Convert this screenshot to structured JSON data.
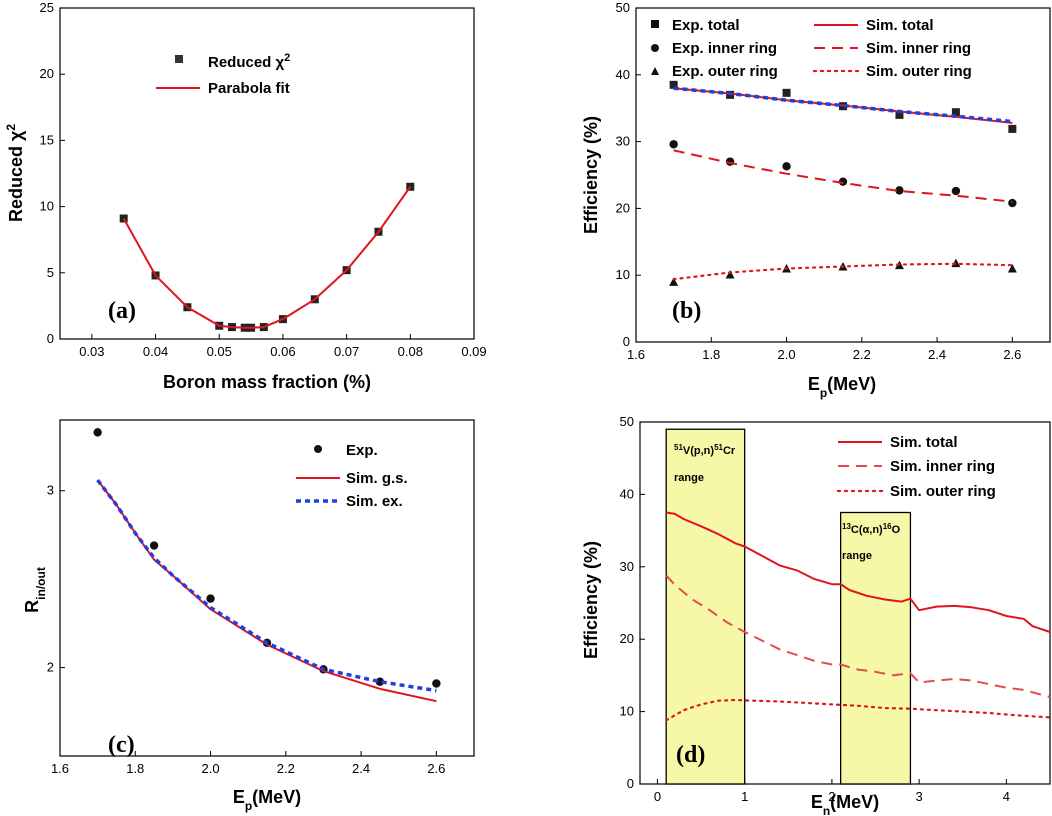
{
  "colors": {
    "sim_red": "#e0141e",
    "ex_blue": "#1f3fe0",
    "box_fill": "#f7f7a8"
  },
  "chart_data": [
    {
      "type": "scatter",
      "panel_label": "(a)",
      "xlabel": "Boron mass fraction (%)",
      "ylabel": "Reduced χ2",
      "xlim": [
        0.025,
        0.09
      ],
      "ylim": [
        0,
        25
      ],
      "xticks": [
        "0.03",
        "0.04",
        "0.05",
        "0.06",
        "0.07",
        "0.08",
        "0.09"
      ],
      "yticks": [
        "0",
        "5",
        "10",
        "15",
        "20",
        "25"
      ],
      "legend_loc": "top-center",
      "series": [
        {
          "name": "Reduced χ2",
          "kind": "marker",
          "marker": "square",
          "x": [
            0.035,
            0.04,
            0.045,
            0.05,
            0.052,
            0.054,
            0.055,
            0.057,
            0.06,
            0.065,
            0.07,
            0.075,
            0.08
          ],
          "y": [
            9.1,
            4.8,
            2.4,
            1.0,
            0.9,
            0.85,
            0.85,
            0.9,
            1.5,
            3.0,
            5.2,
            8.1,
            11.5
          ]
        },
        {
          "name": "Parabola fit",
          "kind": "line",
          "style": "solid",
          "x": [
            0.035,
            0.04,
            0.045,
            0.05,
            0.052,
            0.054,
            0.055,
            0.057,
            0.06,
            0.065,
            0.07,
            0.075,
            0.08
          ],
          "y": [
            9.1,
            4.8,
            2.4,
            1.0,
            0.9,
            0.85,
            0.85,
            0.9,
            1.5,
            3.0,
            5.2,
            8.1,
            11.5
          ]
        }
      ]
    },
    {
      "type": "scatter",
      "panel_label": "(b)",
      "xlabel": "Ep(MeV)",
      "ylabel": "Efficiency (%)",
      "xlim": [
        1.6,
        2.7
      ],
      "ylim": [
        0,
        50
      ],
      "xticks": [
        "1.6",
        "1.8",
        "2.0",
        "2.2",
        "2.4",
        "2.6"
      ],
      "yticks": [
        "0",
        "10",
        "20",
        "30",
        "40",
        "50"
      ],
      "legend_loc": "top",
      "series": [
        {
          "name": "Exp. total",
          "kind": "marker",
          "marker": "square",
          "x": [
            1.7,
            1.85,
            2.0,
            2.15,
            2.3,
            2.45,
            2.6
          ],
          "y": [
            38.5,
            37.0,
            37.3,
            35.3,
            34.0,
            34.4,
            31.9
          ]
        },
        {
          "name": "Exp. inner ring",
          "kind": "marker",
          "marker": "circle",
          "x": [
            1.7,
            1.85,
            2.0,
            2.15,
            2.3,
            2.45,
            2.6
          ],
          "y": [
            29.6,
            27.0,
            26.3,
            24.0,
            22.7,
            22.6,
            20.8
          ]
        },
        {
          "name": "Exp. outer ring",
          "kind": "marker",
          "marker": "triangle",
          "x": [
            1.7,
            1.85,
            2.0,
            2.15,
            2.3,
            2.45,
            2.6
          ],
          "y": [
            9.0,
            10.1,
            11.0,
            11.3,
            11.5,
            11.8,
            11.0
          ]
        },
        {
          "name": "Sim. total",
          "kind": "line",
          "style": "solid",
          "x": [
            1.7,
            1.85,
            2.0,
            2.15,
            2.3,
            2.45,
            2.6
          ],
          "y": [
            38.0,
            37.2,
            36.2,
            35.4,
            34.5,
            33.7,
            32.8
          ]
        },
        {
          "name": "Sim. inner ring",
          "kind": "line",
          "style": "dashed",
          "x": [
            1.7,
            1.85,
            2.0,
            2.15,
            2.3,
            2.45,
            2.6
          ],
          "y": [
            28.7,
            26.8,
            25.2,
            23.8,
            22.6,
            21.9,
            21.0
          ]
        },
        {
          "name": "Sim. outer ring",
          "kind": "line",
          "style": "dotted",
          "x": [
            1.7,
            1.85,
            2.0,
            2.15,
            2.3,
            2.45,
            2.6
          ],
          "y": [
            9.4,
            10.4,
            11.0,
            11.3,
            11.6,
            11.7,
            11.5
          ]
        },
        {
          "kind": "line",
          "style": "dotted-blue",
          "x": [
            1.7,
            1.85,
            2.0,
            2.15,
            2.3,
            2.45,
            2.6
          ],
          "y": [
            38.0,
            37.2,
            36.2,
            35.4,
            34.5,
            33.8,
            33.0
          ]
        }
      ]
    },
    {
      "type": "scatter",
      "panel_label": "(c)",
      "xlabel": "Ep(MeV)",
      "ylabel": "Rin/out",
      "xlim": [
        1.6,
        2.7
      ],
      "ylim": [
        1.5,
        3.4
      ],
      "xticks": [
        "1.6",
        "1.8",
        "2.0",
        "2.2",
        "2.4",
        "2.6"
      ],
      "yticks": [
        "2",
        "3"
      ],
      "legend_loc": "top-right",
      "series": [
        {
          "name": "Exp.",
          "kind": "marker",
          "marker": "circle",
          "x": [
            1.7,
            1.85,
            2.0,
            2.15,
            2.3,
            2.45,
            2.6
          ],
          "y": [
            3.33,
            2.69,
            2.39,
            2.14,
            1.99,
            1.92,
            1.91
          ]
        },
        {
          "name": "Sim. g.s.",
          "kind": "line",
          "style": "solid",
          "x": [
            1.7,
            1.75,
            1.8,
            1.85,
            1.9,
            2.0,
            2.15,
            2.3,
            2.45,
            2.6
          ],
          "y": [
            3.06,
            2.92,
            2.76,
            2.61,
            2.52,
            2.33,
            2.13,
            1.98,
            1.88,
            1.81
          ]
        },
        {
          "name": "Sim. ex.",
          "kind": "line",
          "style": "dotted-blue",
          "x": [
            1.7,
            1.75,
            1.8,
            1.85,
            1.9,
            2.0,
            2.15,
            2.3,
            2.45,
            2.6
          ],
          "y": [
            3.06,
            2.92,
            2.76,
            2.62,
            2.52,
            2.34,
            2.14,
            1.99,
            1.92,
            1.87
          ]
        }
      ]
    },
    {
      "type": "line",
      "panel_label": "(d)",
      "xlabel": "En(MeV)",
      "ylabel": "Efficiency (%)",
      "xlim": [
        -0.2,
        4.5
      ],
      "ylim": [
        0,
        50
      ],
      "xticks": [
        "0",
        "1",
        "2",
        "3",
        "4"
      ],
      "yticks": [
        "0",
        "10",
        "20",
        "30",
        "40",
        "50"
      ],
      "legend_loc": "top-right",
      "ranges": [
        {
          "label_line1": "51V(p,n)51Cr",
          "label_line2": "range",
          "x": [
            0.1,
            1.0
          ],
          "y": [
            0,
            49
          ]
        },
        {
          "label_line1": "13C(α,n)16O",
          "label_line2": "range",
          "x": [
            2.1,
            2.9
          ],
          "y": [
            0,
            37.5
          ]
        }
      ],
      "series": [
        {
          "name": "Sim. total",
          "style": "solid",
          "x": [
            0.1,
            0.2,
            0.3,
            0.5,
            0.7,
            0.9,
            1.0,
            1.2,
            1.4,
            1.6,
            1.8,
            2.0,
            2.1,
            2.2,
            2.4,
            2.6,
            2.8,
            2.9,
            3.0,
            3.2,
            3.4,
            3.6,
            3.8,
            4.0,
            4.2,
            4.3,
            4.5
          ],
          "y": [
            37.5,
            37.3,
            36.6,
            35.6,
            34.5,
            33.2,
            32.8,
            31.5,
            30.2,
            29.5,
            28.3,
            27.6,
            27.6,
            26.8,
            26.0,
            25.5,
            25.2,
            25.6,
            24.0,
            24.5,
            24.6,
            24.4,
            24.0,
            23.2,
            22.8,
            21.8,
            21.0
          ]
        },
        {
          "name": "Sim. inner ring",
          "style": "dashed",
          "x": [
            0.1,
            0.2,
            0.4,
            0.6,
            0.8,
            1.0,
            1.2,
            1.4,
            1.6,
            1.8,
            2.0,
            2.1,
            2.3,
            2.5,
            2.7,
            2.9,
            3.0,
            3.2,
            3.4,
            3.6,
            3.8,
            4.0,
            4.2,
            4.5
          ],
          "y": [
            28.8,
            27.5,
            25.5,
            24.0,
            22.3,
            21.0,
            19.8,
            18.6,
            17.8,
            17.0,
            16.5,
            16.5,
            15.8,
            15.5,
            15.0,
            15.3,
            14.0,
            14.3,
            14.5,
            14.3,
            13.8,
            13.3,
            13.0,
            12.0
          ]
        },
        {
          "name": "Sim. outer ring",
          "style": "dotted",
          "x": [
            0.1,
            0.3,
            0.5,
            0.7,
            0.9,
            1.1,
            1.4,
            1.7,
            2.0,
            2.3,
            2.6,
            2.9,
            3.2,
            3.5,
            3.8,
            4.1,
            4.5
          ],
          "y": [
            8.8,
            10.2,
            11.0,
            11.5,
            11.6,
            11.5,
            11.4,
            11.2,
            11.0,
            10.8,
            10.5,
            10.4,
            10.2,
            10.0,
            9.8,
            9.5,
            9.2
          ]
        }
      ]
    }
  ]
}
